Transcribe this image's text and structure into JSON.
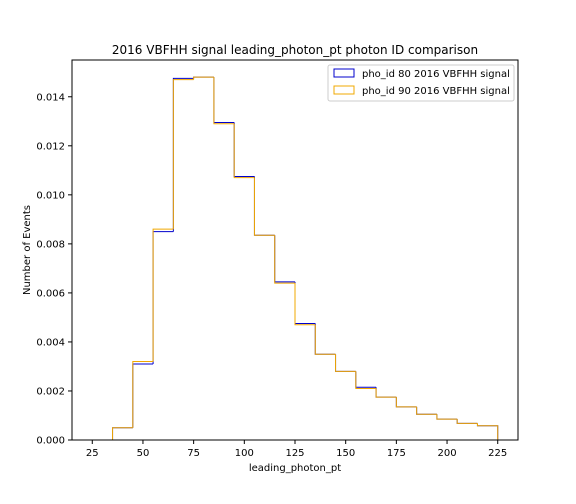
{
  "chart_data": {
    "type": "histogram",
    "title": "2016 VBFHH signal leading_photon_pt photon ID comparison",
    "xlabel": "leading_photon_pt",
    "ylabel": "Number of Events",
    "xlim": [
      15,
      235
    ],
    "ylim": [
      0,
      0.0155
    ],
    "xticks": [
      25,
      50,
      75,
      100,
      125,
      150,
      175,
      200,
      225
    ],
    "yticks": [
      0.0,
      0.002,
      0.004,
      0.006,
      0.008,
      0.01,
      0.012,
      0.014
    ],
    "ytick_labels": [
      "0.000",
      "0.002",
      "0.004",
      "0.006",
      "0.008",
      "0.010",
      "0.012",
      "0.014"
    ],
    "grid": false,
    "legend_position": "top-right",
    "bin_edges": [
      35,
      45,
      55,
      65,
      75,
      85,
      95,
      105,
      115,
      125,
      135,
      145,
      155,
      165,
      175,
      185,
      195,
      205,
      215,
      225
    ],
    "series": [
      {
        "name": "pho_id 80 2016 VBFHH signal",
        "color": "#0000cc",
        "values": [
          0.0005,
          0.0031,
          0.0085,
          0.01475,
          0.0148,
          0.01295,
          0.01075,
          0.00835,
          0.00645,
          0.00475,
          0.0035,
          0.0028,
          0.00215,
          0.00175,
          0.00135,
          0.00105,
          0.00085,
          0.00068,
          0.00058
        ]
      },
      {
        "name": "pho_id 90 2016 VBFHH signal",
        "color": "#f0a800",
        "values": [
          0.0005,
          0.0032,
          0.0086,
          0.0147,
          0.0148,
          0.0129,
          0.0107,
          0.00835,
          0.0064,
          0.0047,
          0.0035,
          0.0028,
          0.0021,
          0.00175,
          0.00135,
          0.00105,
          0.00085,
          0.00068,
          0.00058
        ]
      }
    ]
  }
}
